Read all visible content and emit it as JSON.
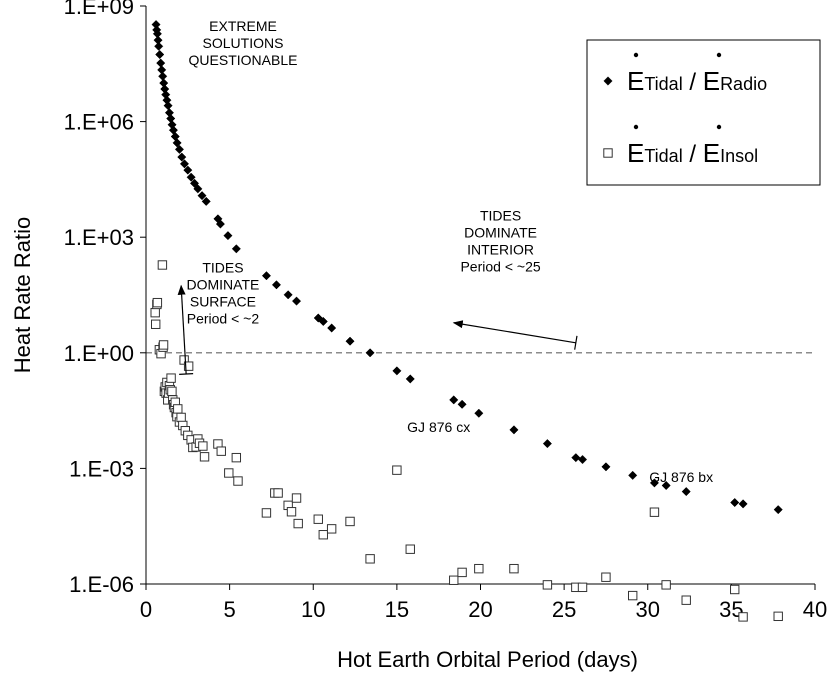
{
  "chart_data": {
    "type": "scatter",
    "title": "",
    "xlabel": "Hot Earth Orbital Period (days)",
    "ylabel": "Heat Rate Ratio",
    "xlim": [
      0,
      40
    ],
    "ylim_log10": [
      -6,
      9
    ],
    "x_ticks": [
      0,
      5,
      10,
      15,
      20,
      25,
      30,
      35,
      40
    ],
    "y_ticks": [
      {
        "exp": 9,
        "label": "1.E+09"
      },
      {
        "exp": 6,
        "label": "1.E+06"
      },
      {
        "exp": 3,
        "label": "1.E+03"
      },
      {
        "exp": 0,
        "label": "1.E+00"
      },
      {
        "exp": -3,
        "label": "1.E-03"
      },
      {
        "exp": -6,
        "label": "1.E-06"
      }
    ],
    "reference_line": {
      "y": 1,
      "style": "dashed"
    },
    "legend": {
      "position": "top-right",
      "entries": [
        {
          "marker": "diamond",
          "num_main": "E",
          "num_sub": "Tidal",
          "sep": " / ",
          "den_main": "E",
          "den_sub": "Radio"
        },
        {
          "marker": "open-square",
          "num_main": "E",
          "num_sub": "Tidal",
          "sep": " / ",
          "den_main": "E",
          "den_sub": "Insol"
        }
      ]
    },
    "series": [
      {
        "name": "Tidal / Radio",
        "marker": "diamond",
        "points": [
          [
            0.6,
            330000000.0
          ],
          [
            0.64,
            240000000.0
          ],
          [
            0.68,
            190000000.0
          ],
          [
            0.72,
            130000000.0
          ],
          [
            0.76,
            90000000.0
          ],
          [
            0.82,
            55000000.0
          ],
          [
            0.88,
            33000000.0
          ],
          [
            0.94,
            22000000.0
          ],
          [
            1.0,
            15000000.0
          ],
          [
            1.06,
            10000000.0
          ],
          [
            1.12,
            7000000.0
          ],
          [
            1.18,
            5000000.0
          ],
          [
            1.25,
            3600000.0
          ],
          [
            1.32,
            2600000.0
          ],
          [
            1.4,
            1700000.0
          ],
          [
            1.48,
            1200000.0
          ],
          [
            1.56,
            830000.0
          ],
          [
            1.64,
            600000.0
          ],
          [
            1.75,
            410000.0
          ],
          [
            1.86,
            280000.0
          ],
          [
            2.0,
            190000.0
          ],
          [
            2.14,
            120000.0
          ],
          [
            2.3,
            80000.0
          ],
          [
            2.5,
            55000.0
          ],
          [
            2.7,
            36000.0
          ],
          [
            2.9,
            25000.0
          ],
          [
            3.1,
            18000.0
          ],
          [
            3.35,
            12000.0
          ],
          [
            3.6,
            8500.0
          ],
          [
            4.3,
            3000.0
          ],
          [
            4.45,
            2200.0
          ],
          [
            4.9,
            1100.0
          ],
          [
            5.4,
            500.0
          ],
          [
            7.2,
            100.0
          ],
          [
            7.8,
            58.0
          ],
          [
            8.5,
            32.0
          ],
          [
            9.0,
            22.0
          ],
          [
            10.3,
            8.0
          ],
          [
            10.6,
            6.5
          ],
          [
            11.1,
            4.4
          ],
          [
            12.2,
            2.0
          ],
          [
            13.4,
            1.0
          ],
          [
            15.0,
            0.34
          ],
          [
            15.8,
            0.21
          ],
          [
            18.4,
            0.06
          ],
          [
            18.9,
            0.046
          ],
          [
            19.9,
            0.027
          ],
          [
            22.0,
            0.01
          ],
          [
            24.0,
            0.0044
          ],
          [
            25.7,
            0.0019
          ],
          [
            26.1,
            0.0017
          ],
          [
            27.5,
            0.0011
          ],
          [
            29.1,
            0.00066
          ],
          [
            30.4,
            0.00042
          ],
          [
            31.1,
            0.00036
          ],
          [
            32.3,
            0.00025
          ],
          [
            35.2,
            0.00013
          ],
          [
            35.7,
            0.00012
          ],
          [
            37.8,
            8.5e-05
          ]
        ]
      },
      {
        "name": "Tidal / Insol",
        "marker": "open-square",
        "points": [
          [
            0.55,
            11
          ],
          [
            0.58,
            5.5
          ],
          [
            0.65,
            18
          ],
          [
            0.68,
            20
          ],
          [
            0.8,
            1.2
          ],
          [
            0.9,
            0.95
          ],
          [
            0.98,
            190
          ],
          [
            1.02,
            1.4
          ],
          [
            1.05,
            1.6
          ],
          [
            1.1,
            0.1
          ],
          [
            1.15,
            0.13
          ],
          [
            1.2,
            0.09
          ],
          [
            1.25,
            0.17
          ],
          [
            1.3,
            0.06
          ],
          [
            1.35,
            0.09
          ],
          [
            1.4,
            0.14
          ],
          [
            1.45,
            0.11
          ],
          [
            1.5,
            0.22
          ],
          [
            1.55,
            0.1
          ],
          [
            1.6,
            0.06
          ],
          [
            1.65,
            0.045
          ],
          [
            1.7,
            0.038
          ],
          [
            1.75,
            0.052
          ],
          [
            1.8,
            0.028
          ],
          [
            1.85,
            0.022
          ],
          [
            1.9,
            0.035
          ],
          [
            2.0,
            0.016
          ],
          [
            2.1,
            0.021
          ],
          [
            2.2,
            0.013
          ],
          [
            2.28,
            0.65
          ],
          [
            2.35,
            0.0095
          ],
          [
            2.5,
            0.0072
          ],
          [
            2.55,
            0.45
          ],
          [
            2.7,
            0.0055
          ],
          [
            2.8,
            0.0035
          ],
          [
            3.0,
            0.0036
          ],
          [
            3.1,
            0.0058
          ],
          [
            3.2,
            0.0045
          ],
          [
            3.4,
            0.0038
          ],
          [
            3.5,
            0.002
          ],
          [
            4.3,
            0.0043
          ],
          [
            4.5,
            0.0028
          ],
          [
            4.95,
            0.00076
          ],
          [
            5.4,
            0.0019
          ],
          [
            5.5,
            0.00047
          ],
          [
            7.2,
            7e-05
          ],
          [
            7.7,
            0.00023
          ],
          [
            7.9,
            0.00023
          ],
          [
            8.5,
            0.00011
          ],
          [
            8.7,
            7.5e-05
          ],
          [
            9.0,
            0.00017
          ],
          [
            9.1,
            3.7e-05
          ],
          [
            10.3,
            4.8e-05
          ],
          [
            10.6,
            1.9e-05
          ],
          [
            11.1,
            2.7e-05
          ],
          [
            12.2,
            4.2e-05
          ],
          [
            13.4,
            4.5e-06
          ],
          [
            15.0,
            0.0009
          ],
          [
            15.8,
            8e-06
          ],
          [
            18.4,
            1.25e-06
          ],
          [
            18.9,
            2e-06
          ],
          [
            19.9,
            2.5e-06
          ],
          [
            22.0,
            2.5e-06
          ],
          [
            24.0,
            9.5e-07
          ],
          [
            25.7,
            8.2e-07
          ],
          [
            26.1,
            8.2e-07
          ],
          [
            27.5,
            1.5e-06
          ],
          [
            29.1,
            5e-07
          ],
          [
            30.4,
            7.3e-05
          ],
          [
            31.1,
            9.5e-07
          ],
          [
            32.3,
            3.8e-07
          ],
          [
            35.2,
            7.2e-07
          ],
          [
            35.7,
            1.4e-07
          ],
          [
            37.8,
            1.45e-07
          ]
        ]
      }
    ],
    "annotations": [
      {
        "lines": [
          "EXTREME",
          "SOLUTIONS",
          "QUESTIONABLE"
        ],
        "x": 5.8,
        "y_log10": 8.35,
        "anchor": "middle"
      },
      {
        "lines": [
          "TIDES",
          "DOMINATE",
          "SURFACE",
          "Period < ~2"
        ],
        "x": 4.6,
        "y_log10": 2.08,
        "anchor": "middle"
      },
      {
        "lines": [
          "TIDES",
          "DOMINATE",
          "INTERIOR",
          "Period < ~25"
        ],
        "x": 21.2,
        "y_log10": 3.43,
        "anchor": "middle"
      },
      {
        "lines": [
          "GJ 876 cx"
        ],
        "x": 17.5,
        "y_log10": -2.05,
        "anchor": "middle"
      },
      {
        "lines": [
          "GJ 876 bx"
        ],
        "x": 32.0,
        "y_log10": -3.35,
        "anchor": "middle"
      }
    ],
    "arrows": [
      {
        "name": "surface-arrow",
        "from": [
          2.4,
          -0.55
        ],
        "to": [
          2.1,
          1.74
        ],
        "tick_at_from": true
      },
      {
        "name": "interior-arrow",
        "from": [
          25.7,
          0.26
        ],
        "to": [
          18.4,
          0.78
        ],
        "tick_at_from": true
      }
    ]
  }
}
